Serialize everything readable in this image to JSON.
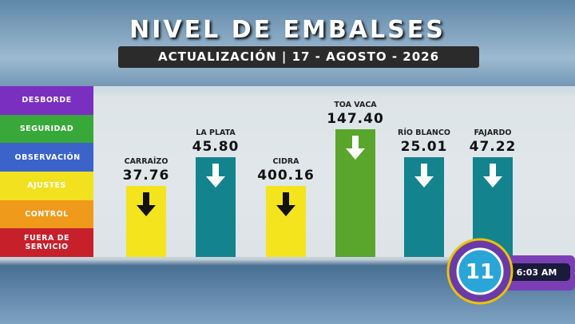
{
  "header": {
    "title": "NIVEL DE EMBALSES",
    "subtitle": "ACTUALIZACIÓN | 17 - AGOSTO - 2026"
  },
  "levels": [
    {
      "label": "DESBORDE",
      "color": "#7a2fc0"
    },
    {
      "label": "SEGURIDAD",
      "color": "#39a83a"
    },
    {
      "label": "OBSERVACIÓN",
      "color": "#3b63c9"
    },
    {
      "label": "AJUSTES",
      "color": "#f1e11f"
    },
    {
      "label": "CONTROL",
      "color": "#f09a1b"
    },
    {
      "label": "FUERA DE SERVICIO",
      "color": "#c6202b"
    }
  ],
  "reservoirs": [
    {
      "name": "CARRAÍZO",
      "value": "37.76",
      "level": "AJUSTES",
      "color": "#f3e41e",
      "arrow_color": "#111111"
    },
    {
      "name": "LA PLATA",
      "value": "45.80",
      "level": "OBSERVACIÓN",
      "color": "#13838e",
      "arrow_color": "#ffffff"
    },
    {
      "name": "CIDRA",
      "value": "400.16",
      "level": "AJUSTES",
      "color": "#f3e41e",
      "arrow_color": "#111111"
    },
    {
      "name": "TOA VACA",
      "value": "147.40",
      "level": "SEGURIDAD",
      "color": "#5aa52c",
      "arrow_color": "#ffffff"
    },
    {
      "name": "RÍO BLANCO",
      "value": "25.01",
      "level": "OBSERVACIÓN",
      "color": "#13838e",
      "arrow_color": "#ffffff"
    },
    {
      "name": "FAJARDO",
      "value": "47.22",
      "level": "OBSERVACIÓN",
      "color": "#13838e",
      "arrow_color": "#ffffff"
    }
  ],
  "logo": {
    "channel": "11",
    "time": "6:03 AM"
  }
}
